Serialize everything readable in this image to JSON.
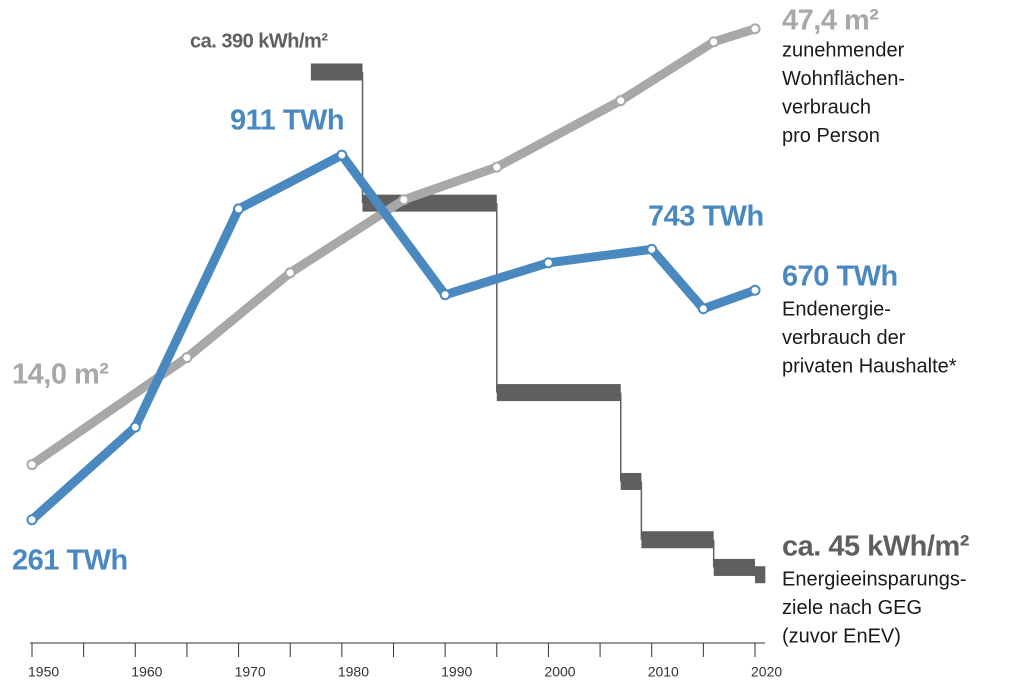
{
  "chart_data": {
    "type": "line",
    "xlim": [
      1950,
      2020
    ],
    "xticks": [
      1950,
      1960,
      1970,
      1980,
      1990,
      2000,
      2010,
      2020
    ],
    "xminorticks": [
      1955,
      1965,
      1975,
      1985,
      1995,
      2005,
      2015
    ],
    "series": [
      {
        "type": "step",
        "color": "#5f5f5f",
        "ylim": [
          40,
          425
        ],
        "bins": [
          1977,
          1982,
          1995,
          2007,
          2009,
          2016,
          2020,
          2021
        ],
        "values": [
          390,
          300,
          170,
          109,
          69,
          50,
          45
        ],
        "value_labels": [
          "ca. 390 kWh/m²",
          null,
          null,
          null,
          null,
          null,
          "ca. 45 kWh/m²"
        ],
        "description": [
          "Energieeinsparungs-",
          "ziele nach GEG",
          "(zuvor EnEV)"
        ]
      },
      {
        "type": "line",
        "color": "#a8a8a8",
        "ylim": [
          5,
          48
        ],
        "x": [
          1950,
          1965,
          1975,
          1986,
          1995,
          2007,
          2016,
          2020
        ],
        "values": [
          14.0,
          22.2,
          28.7,
          34.3,
          36.8,
          41.9,
          46.4,
          47.4
        ],
        "value_labels": [
          "14,0 m²",
          null,
          null,
          null,
          null,
          null,
          null,
          "47,4 m²"
        ],
        "description": [
          "zunehmender",
          "Wohnflächen-",
          "verbrauch",
          "pro Person"
        ]
      },
      {
        "type": "line",
        "color": "#4a89bf",
        "ylim": [
          150,
          1150
        ],
        "x": [
          1950,
          1960,
          1970,
          1980,
          1990,
          2000,
          2010,
          2015,
          2020
        ],
        "values": [
          261,
          426,
          815,
          911,
          662,
          719,
          743,
          637,
          670
        ],
        "value_labels": [
          "261 TWh",
          null,
          null,
          "911 TWh",
          null,
          null,
          "743 TWh",
          null,
          "670 TWh"
        ],
        "description": [
          "Endenergie-",
          "verbrauch der",
          "privaten Haushalte*"
        ]
      }
    ]
  }
}
